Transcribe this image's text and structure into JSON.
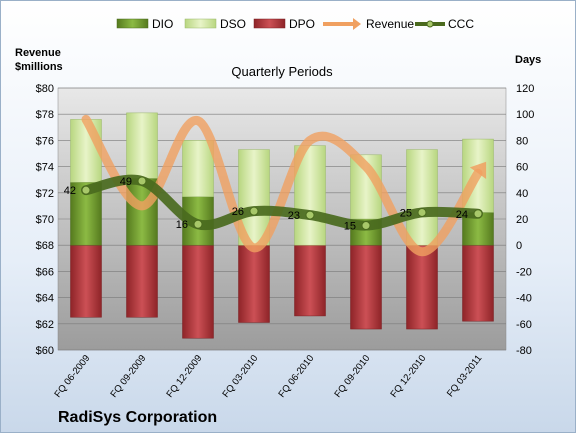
{
  "chart_data": {
    "type": "bar",
    "title": "Quarterly Periods",
    "company": "RadiSys Corporation",
    "left_axis": {
      "label_line1": "Revenue",
      "label_line2": "$millions",
      "ylim": [
        60,
        80
      ],
      "ticks": [
        "$60",
        "$62",
        "$64",
        "$66",
        "$68",
        "$70",
        "$72",
        "$74",
        "$76",
        "$78",
        "$80"
      ]
    },
    "right_axis": {
      "label": "Days",
      "ylim": [
        -80,
        120
      ],
      "ticks": [
        "-80",
        "-60",
        "-40",
        "-20",
        "0",
        "20",
        "40",
        "60",
        "80",
        "100",
        "120"
      ]
    },
    "categories": [
      "FQ 06-2009",
      "FQ 09-2009",
      "FQ 12-2009",
      "FQ 03-2010",
      "FQ 06-2010",
      "FQ 09-2010",
      "FQ 12-2010",
      "FQ 03-2011"
    ],
    "legend": [
      "DIO",
      "DSO",
      "DPO",
      "Revenue",
      "CCC"
    ],
    "series": [
      {
        "name": "DIO",
        "axis": "right",
        "values": [
          48,
          51,
          37,
          0,
          0,
          20,
          0,
          25
        ]
      },
      {
        "name": "DSO",
        "axis": "right",
        "values": [
          48,
          50,
          43,
          73,
          76,
          49,
          73,
          56
        ]
      },
      {
        "name": "DPO",
        "axis": "right",
        "values": [
          -55,
          -55,
          -71,
          -59,
          -54,
          -64,
          -64,
          -58
        ]
      },
      {
        "name": "Revenue",
        "axis": "left",
        "values": [
          77.6,
          71.0,
          77.5,
          67.8,
          76.0,
          74.0,
          67.5,
          73.5
        ]
      },
      {
        "name": "CCC",
        "axis": "right",
        "values": [
          42,
          49,
          16,
          26,
          23,
          15,
          25,
          24
        ]
      }
    ],
    "ccc_labels": [
      "42",
      "49",
      "16",
      "26",
      "23",
      "15",
      "25",
      "24"
    ],
    "colors": {
      "DIO": "#6e9a2c",
      "DSO": "#d2e6a4",
      "DPO": "#b8353a",
      "Revenue": "#f0a060",
      "CCC": "#4a6a1e",
      "plot_bg_top": "#e6e6e6",
      "plot_bg_bottom": "#9a9a9a"
    },
    "grid": true
  }
}
